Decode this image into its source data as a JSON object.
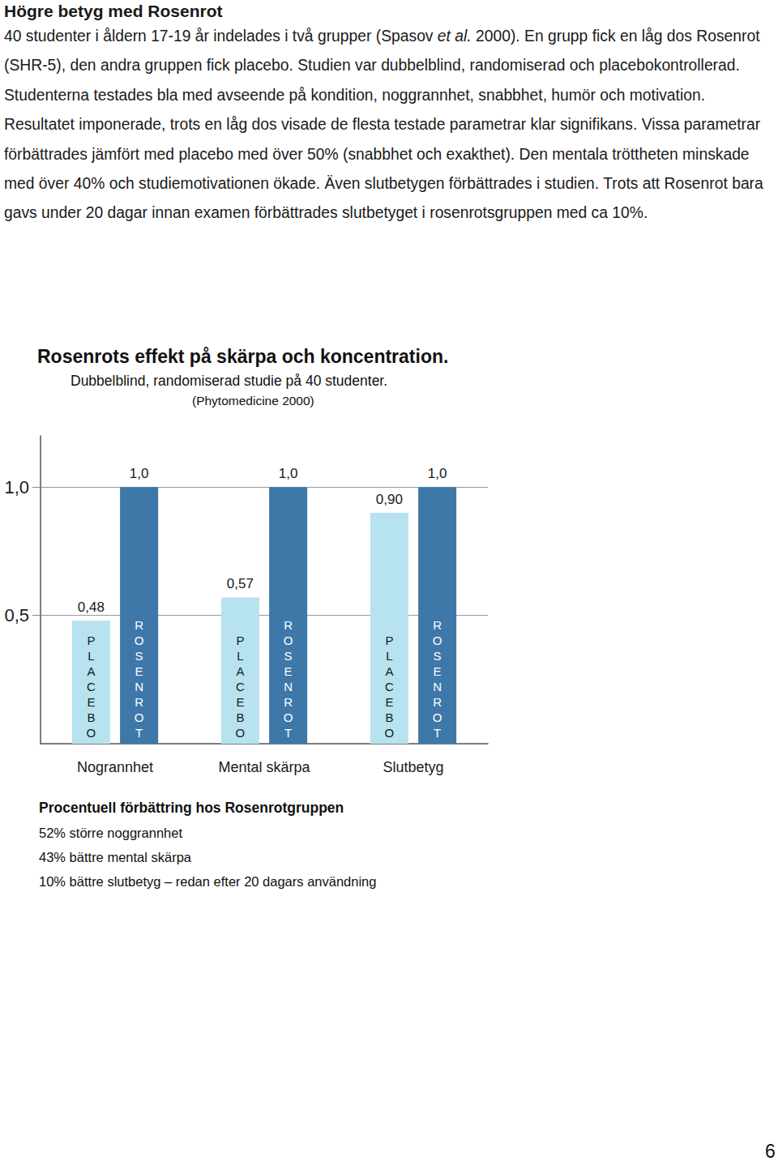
{
  "document": {
    "heading": "Högre betyg med Rosenrot",
    "paragraphs": [
      [
        {
          "text": "40 studenter i åldern 17-19 år indelades i två grupper (Spasov "
        },
        {
          "text": "et al.",
          "italic": true
        },
        {
          "text": " 2000). En grupp fick en låg dos Rosenrot (SHR-5), den andra gruppen fick placebo. Studien var dubbelblind, randomiserad och placebokontrollerad. Studenterna testades bla med avseende på kondition, noggrannhet, snabbhet, humör och motivation."
        }
      ],
      [
        {
          "text": "Resultatet imponerade, trots en låg dos visade de flesta testade parametrar klar signifikans. Vissa parametrar förbättrades jämfört med placebo med över 50% (snabbhet och exakthet). Den mentala tröttheten minskade med över 40% och studiemotivationen ökade. Även slutbetygen förbättrades i studien. Trots att Rosenrot bara gavs under 20 dagar innan examen förbättrades slutbetyget i rosenrotsgruppen med ca 10%."
        }
      ]
    ],
    "summary_title": "Procentuell förbättring hos Rosenrotgruppen",
    "summary_lines": [
      "52% större noggrannhet",
      "43% bättre mental skärpa",
      "10% bättre slutbetyg – redan efter 20 dagars användning"
    ],
    "page_number": "6"
  },
  "chart_data": {
    "type": "bar",
    "title": "Rosenrots effekt på skärpa och koncentration.",
    "subtitle": [
      "Dubbelblind, randomiserad studie på 40 studenter.",
      "(Phytomedicine 2000)"
    ],
    "categories": [
      "Nogrannhet",
      "Mental skärpa",
      "Slutbetyg"
    ],
    "series": [
      {
        "name": "PLACEBO",
        "color": "#b7e2ef",
        "values": [
          0.48,
          0.57,
          0.9
        ],
        "value_labels": [
          "0,48",
          "0,57",
          "0,90"
        ]
      },
      {
        "name": "ROSENROT",
        "color": "#3d78a8",
        "values": [
          1.0,
          1.0,
          1.0
        ],
        "value_labels": [
          "1,0",
          "1,0",
          "1,0"
        ]
      }
    ],
    "ylim": [
      0,
      1.2
    ],
    "yticks": [
      {
        "value": 0.5,
        "label": "0,5"
      },
      {
        "value": 1.0,
        "label": "1,0"
      }
    ],
    "grid": true,
    "data_labels": true
  }
}
